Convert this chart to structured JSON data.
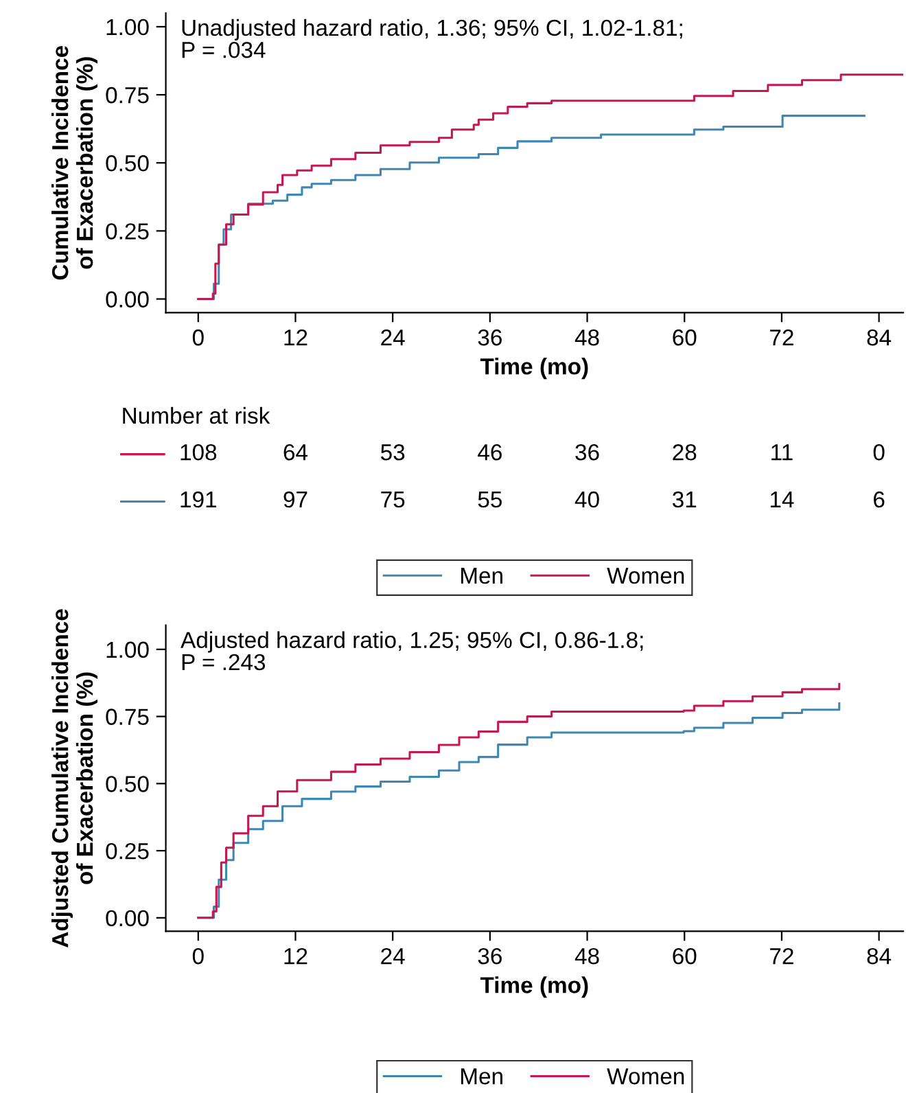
{
  "chart_data": [
    {
      "type": "step",
      "xlabel": "Time (mo)",
      "ylabel": "Cumulative Incidence\nof Exacerbation (%)",
      "xlim": [
        -4,
        87
      ],
      "ylim": [
        -0.05,
        1.05
      ],
      "xticks": [
        0,
        12,
        24,
        36,
        48,
        60,
        72,
        84
      ],
      "yticks": [
        {
          "value": 0,
          "label": "0.00"
        },
        {
          "value": 0.25,
          "label": "0.25"
        },
        {
          "value": 0.5,
          "label": "0.50"
        },
        {
          "value": 0.75,
          "label": "0.75"
        },
        {
          "value": 1,
          "label": "1.00"
        }
      ],
      "grid": false,
      "legend": "bottom",
      "annotations": [
        "Unadjusted hazard ratio, 1.36; 95% CI, 1.02-1.81;\nP = .034"
      ],
      "series": [
        {
          "name": "Men",
          "color": "#3f87b3",
          "x": [
            0,
            1.33,
            1.93,
            2.54,
            3.14,
            4.05,
            6.17,
            9.2,
            11.0,
            12.8,
            14.0,
            16.4,
            19.4,
            22.5,
            26.1,
            29.7,
            34.6,
            37.0,
            39.4,
            43.6,
            49.7,
            60.6,
            61.2,
            64.8,
            72.1,
            82.2
          ],
          "values": [
            0,
            0,
            0.056,
            0.2,
            0.256,
            0.31,
            0.35,
            0.361,
            0.383,
            0.41,
            0.423,
            0.437,
            0.455,
            0.477,
            0.501,
            0.519,
            0.532,
            0.555,
            0.579,
            0.592,
            0.604,
            0.604,
            0.622,
            0.633,
            0.673,
            0.673
          ]
        },
        {
          "name": "Women",
          "color": "#c8174f",
          "x": [
            0,
            1.33,
            1.81,
            2.12,
            2.54,
            3.45,
            4.35,
            6.17,
            8.0,
            9.8,
            10.4,
            12.2,
            14.0,
            16.4,
            19.4,
            22.5,
            26.1,
            29.7,
            31.3,
            34.0,
            34.6,
            36.4,
            38.2,
            40.6,
            43.6,
            55.1,
            61.2,
            66.0,
            70.3,
            74.5,
            79.3,
            87
          ],
          "values": [
            0,
            0,
            0.02,
            0.13,
            0.2,
            0.274,
            0.31,
            0.347,
            0.392,
            0.419,
            0.455,
            0.472,
            0.49,
            0.514,
            0.537,
            0.564,
            0.577,
            0.592,
            0.622,
            0.64,
            0.659,
            0.682,
            0.706,
            0.719,
            0.728,
            0.728,
            0.746,
            0.764,
            0.786,
            0.804,
            0.824,
            0.824
          ]
        }
      ]
    },
    {
      "type": "other",
      "title": "Number at risk",
      "annotations": [
        "108",
        "64",
        "53",
        "46",
        "36",
        "28",
        "11",
        "0",
        "191",
        "97",
        "75",
        "55",
        "40",
        "31",
        "14",
        "6"
      ],
      "series": [
        {
          "color": "#c8174f"
        },
        {
          "color": "#3f87b3"
        }
      ]
    },
    {
      "type": "step",
      "xlabel": "Time (mo)",
      "ylabel": "Adjusted Cumulative Incidence\nof Exacerbation (%)",
      "xlim": [
        -4,
        87
      ],
      "ylim": [
        -0.05,
        1.09
      ],
      "xticks": [
        0,
        12,
        24,
        36,
        48,
        60,
        72,
        84
      ],
      "yticks": [
        {
          "value": 0,
          "label": "0.00"
        },
        {
          "value": 0.25,
          "label": "0.25"
        },
        {
          "value": 0.5,
          "label": "0.50"
        },
        {
          "value": 0.75,
          "label": "0.75"
        },
        {
          "value": 1,
          "label": "1.00"
        }
      ],
      "grid": false,
      "legend": "bottom",
      "annotations": [
        "Adjusted hazard ratio, 1.25; 95% CI, 0.86-1.8;\nP = .243"
      ],
      "series": [
        {
          "name": "Men",
          "color": "#3f87b3",
          "x": [
            0,
            1.03,
            1.93,
            2.54,
            3.45,
            4.35,
            6.17,
            8.0,
            10.4,
            12.8,
            16.4,
            19.4,
            22.5,
            26.1,
            29.7,
            32.2,
            34.6,
            37.0,
            40.6,
            43.6,
            59.9,
            61.2,
            64.8,
            68.4,
            72.1,
            74.5,
            79.1,
            79.1
          ],
          "values": [
            0,
            0,
            0.042,
            0.142,
            0.215,
            0.279,
            0.33,
            0.361,
            0.416,
            0.443,
            0.47,
            0.489,
            0.507,
            0.525,
            0.549,
            0.58,
            0.599,
            0.645,
            0.672,
            0.69,
            0.695,
            0.708,
            0.726,
            0.745,
            0.763,
            0.775,
            0.781,
            0.799
          ]
        },
        {
          "name": "Women",
          "color": "#c8174f",
          "x": [
            0,
            1.03,
            1.81,
            2.24,
            2.84,
            3.45,
            4.35,
            6.17,
            8.0,
            9.8,
            12.2,
            16.4,
            19.4,
            22.5,
            26.1,
            29.7,
            32.2,
            34.6,
            37.0,
            40.6,
            43.6,
            59.9,
            61.2,
            64.8,
            68.4,
            72.1,
            74.5,
            79.1,
            79.1
          ],
          "values": [
            0,
            0,
            0.024,
            0.115,
            0.206,
            0.261,
            0.315,
            0.38,
            0.416,
            0.471,
            0.513,
            0.544,
            0.571,
            0.593,
            0.617,
            0.644,
            0.672,
            0.694,
            0.73,
            0.75,
            0.768,
            0.772,
            0.79,
            0.807,
            0.825,
            0.84,
            0.852,
            0.858,
            0.871
          ]
        }
      ]
    }
  ]
}
